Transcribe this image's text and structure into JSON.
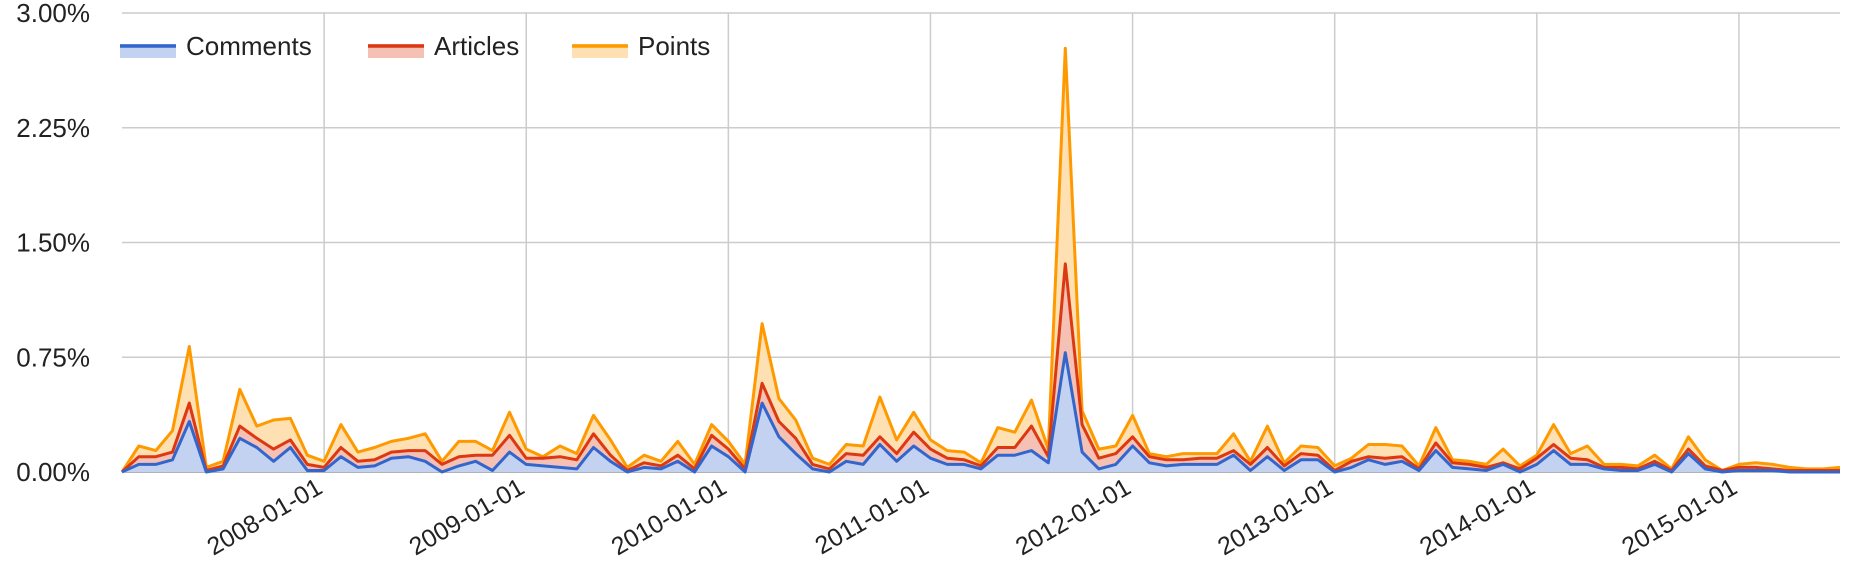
{
  "chart_data": {
    "type": "area",
    "stacked": true,
    "title": "",
    "xlabel": "",
    "ylabel": "",
    "ylim": [
      0,
      3.0
    ],
    "y_ticks": [
      "0.00%",
      "0.75%",
      "1.50%",
      "2.25%",
      "3.00%"
    ],
    "x_ticks": [
      "2008-01-01",
      "2009-01-01",
      "2010-01-01",
      "2011-01-01",
      "2012-01-01",
      "2013-01-01",
      "2014-01-01",
      "2015-01-01"
    ],
    "legend_position": "top-left",
    "grid": true,
    "x": [
      2007.0,
      2007.083,
      2007.167,
      2007.25,
      2007.333,
      2007.417,
      2007.5,
      2007.583,
      2007.667,
      2007.75,
      2007.833,
      2007.917,
      2008.0,
      2008.083,
      2008.167,
      2008.25,
      2008.333,
      2008.417,
      2008.5,
      2008.583,
      2008.667,
      2008.75,
      2008.833,
      2008.917,
      2009.0,
      2009.083,
      2009.167,
      2009.25,
      2009.333,
      2009.417,
      2009.5,
      2009.583,
      2009.667,
      2009.75,
      2009.833,
      2009.917,
      2010.0,
      2010.083,
      2010.167,
      2010.25,
      2010.333,
      2010.417,
      2010.5,
      2010.583,
      2010.667,
      2010.75,
      2010.833,
      2010.917,
      2011.0,
      2011.083,
      2011.167,
      2011.25,
      2011.333,
      2011.417,
      2011.5,
      2011.583,
      2011.667,
      2011.75,
      2011.833,
      2011.917,
      2012.0,
      2012.083,
      2012.167,
      2012.25,
      2012.333,
      2012.417,
      2012.5,
      2012.583,
      2012.667,
      2012.75,
      2012.833,
      2012.917,
      2013.0,
      2013.083,
      2013.167,
      2013.25,
      2013.333,
      2013.417,
      2013.5,
      2013.583,
      2013.667,
      2013.75,
      2013.833,
      2013.917,
      2014.0,
      2014.083,
      2014.167,
      2014.25,
      2014.333,
      2014.417,
      2014.5,
      2014.583,
      2014.667,
      2014.75,
      2014.833,
      2014.917,
      2015.0,
      2015.083,
      2015.167,
      2015.25,
      2015.333,
      2015.417,
      2015.5
    ],
    "series": [
      {
        "name": "Comments",
        "color": "#3366cc",
        "fill": "#c4d2f2",
        "values": [
          0.0,
          0.05,
          0.05,
          0.08,
          0.33,
          0.0,
          0.02,
          0.22,
          0.16,
          0.07,
          0.16,
          0.01,
          0.01,
          0.1,
          0.03,
          0.04,
          0.09,
          0.1,
          0.07,
          0.0,
          0.04,
          0.07,
          0.01,
          0.13,
          0.05,
          0.04,
          0.03,
          0.02,
          0.16,
          0.07,
          0.0,
          0.03,
          0.02,
          0.07,
          0.0,
          0.17,
          0.1,
          0.0,
          0.45,
          0.23,
          0.12,
          0.02,
          0.0,
          0.07,
          0.05,
          0.18,
          0.07,
          0.17,
          0.09,
          0.05,
          0.05,
          0.02,
          0.11,
          0.11,
          0.14,
          0.06,
          0.78,
          0.13,
          0.02,
          0.05,
          0.17,
          0.06,
          0.04,
          0.05,
          0.05,
          0.05,
          0.11,
          0.01,
          0.1,
          0.01,
          0.08,
          0.08,
          0.0,
          0.03,
          0.08,
          0.05,
          0.07,
          0.01,
          0.14,
          0.03,
          0.02,
          0.01,
          0.05,
          0.0,
          0.05,
          0.14,
          0.05,
          0.05,
          0.02,
          0.01,
          0.01,
          0.05,
          0.0,
          0.12,
          0.02,
          0.0,
          0.01,
          0.01,
          0.01,
          0.0,
          0.0,
          0.0,
          0.0
        ]
      },
      {
        "name": "Articles",
        "color": "#dc3912",
        "fill": "#f4c1b4",
        "values": [
          0.0,
          0.05,
          0.05,
          0.05,
          0.12,
          0.01,
          0.02,
          0.08,
          0.06,
          0.08,
          0.05,
          0.04,
          0.02,
          0.06,
          0.04,
          0.04,
          0.04,
          0.04,
          0.07,
          0.05,
          0.06,
          0.04,
          0.1,
          0.11,
          0.04,
          0.05,
          0.07,
          0.06,
          0.09,
          0.04,
          0.01,
          0.03,
          0.02,
          0.04,
          0.02,
          0.07,
          0.05,
          0.02,
          0.13,
          0.1,
          0.1,
          0.03,
          0.02,
          0.05,
          0.06,
          0.05,
          0.05,
          0.09,
          0.06,
          0.04,
          0.03,
          0.02,
          0.05,
          0.05,
          0.16,
          0.04,
          0.58,
          0.18,
          0.07,
          0.07,
          0.06,
          0.04,
          0.04,
          0.03,
          0.04,
          0.04,
          0.03,
          0.04,
          0.06,
          0.03,
          0.04,
          0.03,
          0.01,
          0.04,
          0.02,
          0.04,
          0.03,
          0.01,
          0.05,
          0.03,
          0.03,
          0.02,
          0.01,
          0.02,
          0.04,
          0.04,
          0.04,
          0.03,
          0.01,
          0.02,
          0.01,
          0.02,
          0.01,
          0.03,
          0.02,
          0.01,
          0.02,
          0.02,
          0.01,
          0.01,
          0.01,
          0.01,
          0.01
        ]
      },
      {
        "name": "Points",
        "color": "#ff9900",
        "fill": "#ffe0b2",
        "values": [
          0.0,
          0.07,
          0.04,
          0.14,
          0.37,
          0.02,
          0.03,
          0.24,
          0.08,
          0.19,
          0.14,
          0.06,
          0.04,
          0.15,
          0.06,
          0.08,
          0.07,
          0.08,
          0.11,
          0.02,
          0.1,
          0.09,
          0.03,
          0.15,
          0.06,
          0.01,
          0.07,
          0.04,
          0.12,
          0.1,
          0.02,
          0.05,
          0.03,
          0.09,
          0.03,
          0.07,
          0.05,
          0.03,
          0.39,
          0.15,
          0.12,
          0.04,
          0.03,
          0.06,
          0.06,
          0.26,
          0.09,
          0.13,
          0.06,
          0.05,
          0.05,
          0.02,
          0.13,
          0.1,
          0.17,
          0.05,
          1.41,
          0.09,
          0.06,
          0.05,
          0.14,
          0.02,
          0.02,
          0.04,
          0.03,
          0.03,
          0.11,
          0.02,
          0.14,
          0.02,
          0.05,
          0.05,
          0.03,
          0.02,
          0.08,
          0.09,
          0.07,
          0.02,
          0.1,
          0.02,
          0.02,
          0.02,
          0.09,
          0.02,
          0.02,
          0.13,
          0.03,
          0.09,
          0.02,
          0.02,
          0.02,
          0.04,
          0.01,
          0.08,
          0.04,
          0.0,
          0.02,
          0.03,
          0.03,
          0.02,
          0.01,
          0.01,
          0.02
        ]
      }
    ]
  }
}
